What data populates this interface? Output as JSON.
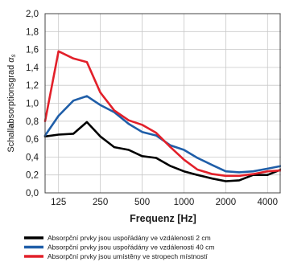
{
  "chart_data": {
    "type": "line",
    "xlabel": "Frequenz [Hz]",
    "ylabel_parts": {
      "prefix": "Schall",
      "bold": "a",
      "mid": "bsorptionsgrad ",
      "symbol": "α",
      "subscript": "s"
    },
    "ylim": [
      0,
      2.0
    ],
    "y_ticks": [
      "0,0",
      "0,2",
      "0,4",
      "0,6",
      "0,8",
      "1,0",
      "1,2",
      "1,4",
      "1,6",
      "1,8",
      "2,0"
    ],
    "x_ticks": [
      "125",
      "250",
      "500",
      "1000",
      "2000",
      "4000"
    ],
    "x_scale": "log",
    "grid": true,
    "x": [
      100,
      125,
      160,
      200,
      250,
      315,
      400,
      500,
      630,
      800,
      1000,
      1250,
      1600,
      2000,
      2500,
      3150,
      4000,
      5000
    ],
    "series": [
      {
        "name": "Absorpční prvky jsou uspořádány ve vzdálenosti 2 cm",
        "color": "#000000",
        "values": [
          0.63,
          0.65,
          0.66,
          0.79,
          0.63,
          0.51,
          0.48,
          0.41,
          0.39,
          0.3,
          0.24,
          0.2,
          0.16,
          0.13,
          0.14,
          0.2,
          0.2,
          0.26
        ]
      },
      {
        "name": "Absorpční prvky jsou uspořádány ve vzdálenosti 40 cm",
        "color": "#1f5ea8",
        "values": [
          0.64,
          0.86,
          1.03,
          1.08,
          0.98,
          0.9,
          0.77,
          0.68,
          0.64,
          0.53,
          0.48,
          0.39,
          0.31,
          0.24,
          0.23,
          0.24,
          0.27,
          0.3
        ]
      },
      {
        "name": "Absorpční prvky jsou umístěny ve stropech místností",
        "color": "#e2202a",
        "values": [
          0.8,
          1.58,
          1.5,
          1.46,
          1.12,
          0.92,
          0.81,
          0.76,
          0.67,
          0.51,
          0.37,
          0.26,
          0.21,
          0.19,
          0.19,
          0.21,
          0.24,
          0.25
        ]
      }
    ]
  }
}
